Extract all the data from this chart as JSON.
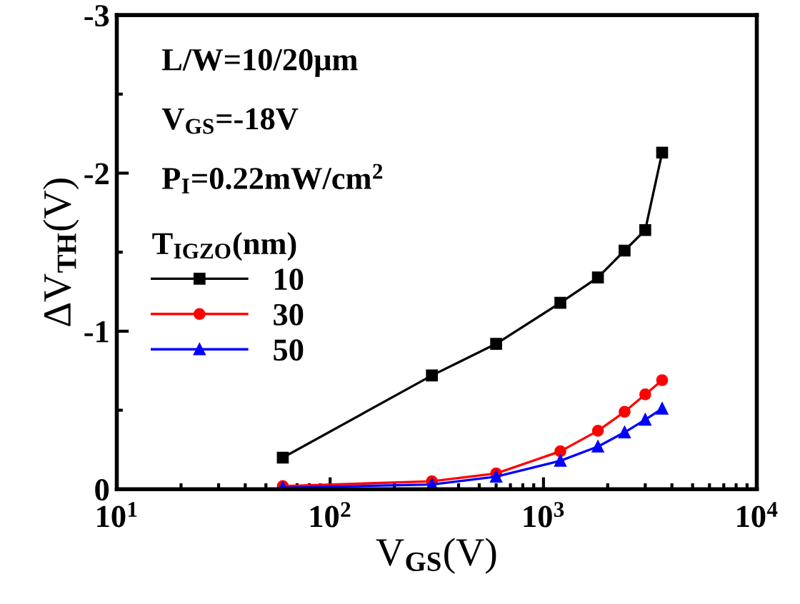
{
  "chart_data": {
    "type": "line",
    "xlabel": "V$_{GS}$(V)",
    "ylabel": "ΔV$_{TH}$(V)",
    "legend_title": "T$_{IGZO}$(nm)",
    "annotations": [
      "L/W=10/20μm",
      "V$_{GS}$=-18V",
      "P$_{I}$=0.22mW/cm$^{2}$"
    ],
    "log": "x",
    "x": [
      60,
      300,
      600,
      1200,
      1800,
      2400,
      3000,
      3600
    ],
    "xlim": [
      10,
      10000
    ],
    "xticks": [
      {
        "value": 10,
        "label": "10$^{1}$"
      },
      {
        "value": 100,
        "label": "10$^{2}$"
      },
      {
        "value": 1000,
        "label": "10$^{3}$"
      },
      {
        "value": 10000,
        "label": "10$^{4}$"
      }
    ],
    "ylim": [
      0,
      -3
    ],
    "yticks": [
      0,
      -1,
      -2,
      -3
    ],
    "grid": false,
    "legend": "left",
    "series": [
      {
        "name": "10",
        "color": "#000000",
        "marker": "square",
        "values": [
          -0.2,
          -0.72,
          -0.92,
          -1.18,
          -1.34,
          -1.51,
          -1.64,
          -2.13
        ]
      },
      {
        "name": "30",
        "color": "#ff0000",
        "marker": "circle",
        "values": [
          -0.02,
          -0.05,
          -0.1,
          -0.24,
          -0.37,
          -0.49,
          -0.6,
          -0.69
        ]
      },
      {
        "name": "50",
        "color": "#0000ff",
        "marker": "triangle",
        "values": [
          -0.01,
          -0.03,
          -0.08,
          -0.18,
          -0.27,
          -0.36,
          -0.44,
          -0.51
        ]
      }
    ]
  }
}
